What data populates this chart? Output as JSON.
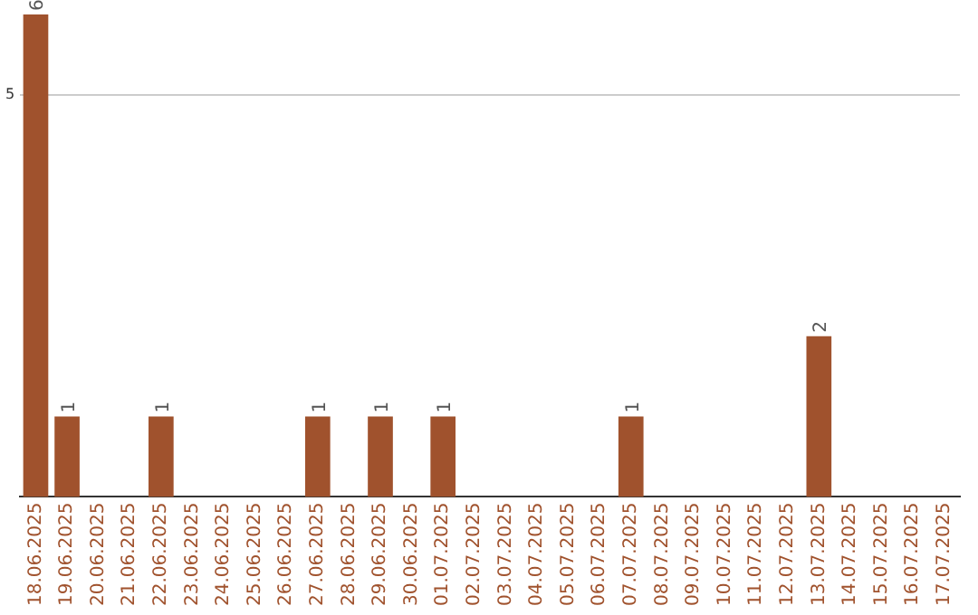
{
  "chart_data": {
    "type": "bar",
    "categories": [
      "18.06.2025",
      "19.06.2025",
      "20.06.2025",
      "21.06.2025",
      "22.06.2025",
      "23.06.2025",
      "24.06.2025",
      "25.06.2025",
      "26.06.2025",
      "27.06.2025",
      "28.06.2025",
      "29.06.2025",
      "30.06.2025",
      "01.07.2025",
      "02.07.2025",
      "03.07.2025",
      "04.07.2025",
      "05.07.2025",
      "06.07.2025",
      "07.07.2025",
      "08.07.2025",
      "09.07.2025",
      "10.07.2025",
      "11.07.2025",
      "12.07.2025",
      "13.07.2025",
      "14.07.2025",
      "15.07.2025",
      "16.07.2025",
      "17.07.2025"
    ],
    "values": [
      6,
      1,
      0,
      0,
      1,
      0,
      0,
      0,
      0,
      1,
      0,
      1,
      0,
      1,
      0,
      0,
      0,
      0,
      0,
      1,
      0,
      0,
      0,
      0,
      0,
      2,
      0,
      0,
      0,
      0
    ],
    "value_labels": [
      "6",
      "1",
      null,
      null,
      "1",
      null,
      null,
      null,
      null,
      "1",
      null,
      "1",
      null,
      "1",
      null,
      null,
      null,
      null,
      null,
      "1",
      null,
      null,
      null,
      null,
      null,
      "2",
      null,
      null,
      null,
      null
    ],
    "color": "#a0522d",
    "ylim": [
      0,
      6
    ],
    "yticks": [
      5
    ],
    "grid": "y"
  }
}
